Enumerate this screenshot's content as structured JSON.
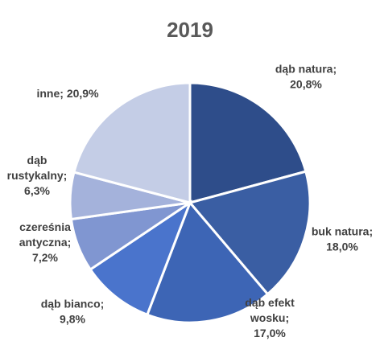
{
  "chart_data": {
    "type": "pie",
    "title": "2019",
    "categories": [
      "dąb natura",
      "buk natura",
      "dąb efekt wosku",
      "dąb bianco",
      "czereśnia antyczna",
      "dąb rustykalny",
      "inne"
    ],
    "values": [
      20.8,
      18.0,
      17.0,
      9.8,
      7.2,
      6.3,
      20.9
    ],
    "data_labels": [
      [
        "dąb natura;",
        "20,8%"
      ],
      [
        "buk natura;",
        "18,0%"
      ],
      [
        "dąb efekt",
        "wosku;",
        "17,0%"
      ],
      [
        "dąb bianco;",
        "9,8%"
      ],
      [
        "czereśnia",
        "antyczna;",
        "7,2%"
      ],
      [
        "dąb",
        "rustykalny;",
        "6,3%"
      ],
      [
        "inne; 20,9%"
      ]
    ],
    "colors": [
      "#2e4d8a",
      "#3a5ea3",
      "#3d65b5",
      "#4a74cc",
      "#8096d1",
      "#a4b2db",
      "#c4cde6"
    ],
    "legend": "none"
  }
}
